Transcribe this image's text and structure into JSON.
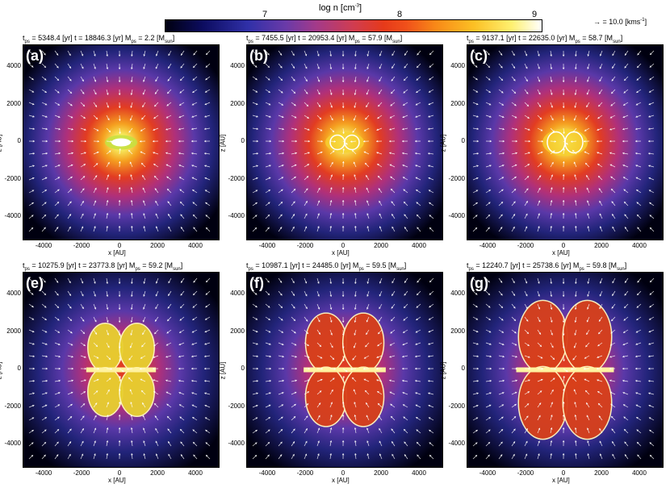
{
  "colorbar": {
    "label_main": "log n [cm",
    "label_sup": "-3",
    "label_end": "]",
    "ticks": [
      "7",
      "8",
      "9"
    ]
  },
  "legend": {
    "arrow_text": "= 10.0 [kms",
    "arrow_sup": "-1",
    "arrow_end": "]"
  },
  "axes": {
    "x_label": "x [AU]",
    "z_label": "z [AU]",
    "x_ticks": [
      "-4000",
      "-2000",
      "0",
      "2000",
      "4000"
    ],
    "z_ticks": [
      "4000",
      "2000",
      "0",
      "-2000",
      "-4000"
    ]
  },
  "panels": [
    {
      "tag": "(a)",
      "tps": "5348.4",
      "t": "18846.3",
      "mps": "2.2"
    },
    {
      "tag": "(b)",
      "tps": "7455.5",
      "t": "20953.4",
      "mps": "57.9"
    },
    {
      "tag": "(c)",
      "tps": "9137.1",
      "t": "22635.0",
      "mps": "58.7"
    },
    {
      "tag": "(e)",
      "tps": "10275.9",
      "t": "23773.8",
      "mps": "59.2"
    },
    {
      "tag": "(f)",
      "tps": "10987.1",
      "t": "24485.0",
      "mps": "59.5"
    },
    {
      "tag": "(g)",
      "tps": "12240.7",
      "t": "25738.6",
      "mps": "59.8"
    }
  ],
  "units": {
    "yr": "[yr]",
    "msun": "[M",
    "msun_sub": "sun",
    "msun_end": "]",
    "ps_sub": "ps"
  }
}
